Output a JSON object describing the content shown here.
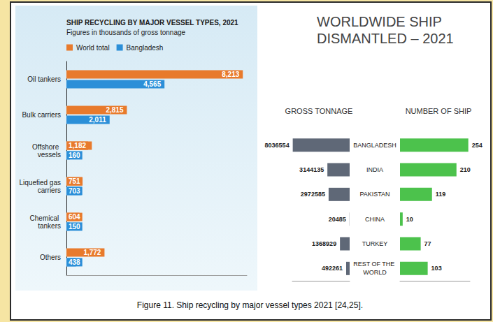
{
  "header": {
    "title": "WORLDWIDE SHIP DISMANTLED – 2021"
  },
  "caption": "Figure 11. Ship recycling by major vessel types 2021 [24,25].",
  "chart_data": [
    {
      "type": "bar",
      "orientation": "horizontal",
      "title": "SHIP RECYCLING BY MAJOR VESSEL TYPES, 2021",
      "subtitle": "Figures in thousands of gross tonnage",
      "categories": [
        "Oil tankers",
        "Bulk carriers",
        "Offshore vessels",
        "Liquefied gas carriers",
        "Chemical tankers",
        "Others"
      ],
      "series": [
        {
          "name": "World total",
          "color": "#e87a2c",
          "values": [
            8213,
            2815,
            1182,
            751,
            604,
            1772
          ],
          "value_labels": [
            "8,213",
            "2,815",
            "1,182",
            "751",
            "604",
            "1,772"
          ]
        },
        {
          "name": "Bangladesh",
          "color": "#2b8fd8",
          "values": [
            4565,
            2011,
            160,
            703,
            150,
            438
          ],
          "value_labels": [
            "4,565",
            "2,011",
            "160",
            "703",
            "150",
            "438"
          ]
        }
      ],
      "xlim": [
        0,
        8400
      ],
      "legend": "top-left",
      "data_labels": true,
      "tick_labels": "y",
      "grid": false
    },
    {
      "type": "bar",
      "orientation": "horizontal",
      "title": "GROSS TONNAGE",
      "categories": [
        "BANGLADESH",
        "INDIA",
        "PAKISTAN",
        "CHINA",
        "TURKEY",
        "REST OF THE WORLD"
      ],
      "values": [
        8036554,
        3144135,
        2972585,
        20485,
        1368929,
        492261
      ],
      "color": "#5f6877",
      "xlim": [
        0,
        8100000
      ],
      "data_labels": true,
      "tick_labels": "y",
      "grid": false
    },
    {
      "type": "bar",
      "orientation": "horizontal",
      "title": "NUMBER OF SHIP",
      "categories": [
        "BANGLADESH",
        "INDIA",
        "PAKISTAN",
        "CHINA",
        "TURKEY",
        "REST OF THE WORLD"
      ],
      "values": [
        254,
        210,
        119,
        10,
        77,
        103
      ],
      "color": "#4cc24c",
      "xlim": [
        0,
        260
      ],
      "data_labels": true,
      "tick_labels": false,
      "grid": false
    }
  ]
}
